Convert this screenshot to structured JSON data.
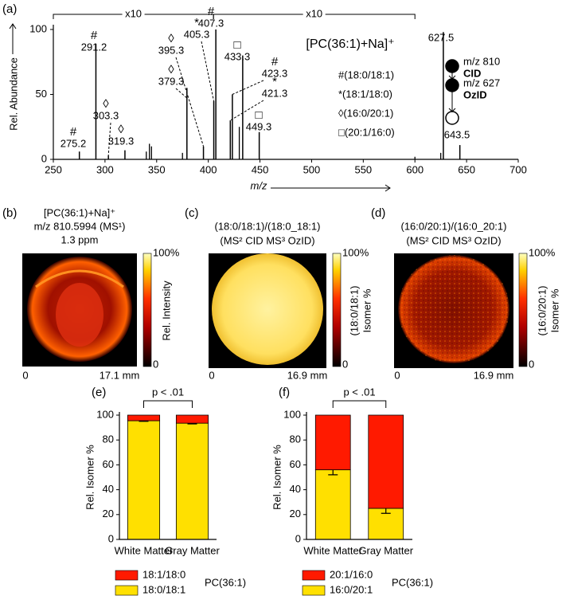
{
  "chart_data": [
    {
      "type": "stem",
      "label": "(a)",
      "title": "[PC(36:1)+Na]⁺",
      "xlabel": "m/z",
      "ylabel": "Rel. Abundance",
      "xlim": [
        250,
        700
      ],
      "xticks": [
        250,
        300,
        350,
        400,
        450,
        500,
        550,
        600,
        650,
        700
      ],
      "ylim": [
        0,
        100
      ],
      "yticks": [
        0,
        50,
        100
      ],
      "color": "#000000",
      "x": [
        275.2,
        291.2,
        303.3,
        319.3,
        379.3,
        395.3,
        405.3,
        407.3,
        421.3,
        423.3,
        433.3,
        449.3,
        627.5,
        643.5
      ],
      "values": [
        6,
        89,
        3,
        7,
        55,
        10,
        45,
        100,
        30,
        50,
        80,
        21,
        98,
        11
      ],
      "symbols": [
        "#",
        "#",
        "◊",
        "◊",
        "◊",
        "◊",
        "*",
        "#",
        "*",
        "#",
        "□",
        "□",
        null,
        null
      ],
      "minor_x": [
        340,
        343,
        345,
        375,
        430,
        600,
        625
      ],
      "minor_values": [
        6,
        12,
        10,
        5,
        25,
        2,
        5
      ],
      "magnifications": [
        {
          "label": "x10",
          "range": [
            250,
            405
          ]
        },
        {
          "label": "x10",
          "range": [
            405,
            600
          ]
        }
      ],
      "legend_items": [
        "#(18:0/18:1)",
        "*(18:1/18:0)",
        "◊(16:0/20:1)",
        "□(20:1/16:0)"
      ],
      "scheme": [
        "m/z 810",
        "CID",
        "m/z 627",
        "OzID"
      ]
    },
    {
      "type": "stacked_bar",
      "label": "(e)",
      "annotation": "p < .01",
      "ylabel": "Rel. Isomer %",
      "categories": [
        "White Matter",
        "Gray Matter"
      ],
      "ylim": [
        0,
        100
      ],
      "yticks": [
        0,
        20,
        40,
        60,
        80,
        100
      ],
      "legend_title": "PC(36:1)",
      "series": [
        {
          "name": "18:0/18:1",
          "color": "#ffe000",
          "values": [
            95.5,
            93.5
          ],
          "errors": [
            0.5,
            0.6
          ]
        },
        {
          "name": "18:1/18:0",
          "color": "#ff1a00",
          "values": [
            4.5,
            6.5
          ]
        }
      ]
    },
    {
      "type": "stacked_bar",
      "label": "(f)",
      "annotation": "p < .01",
      "ylabel": "Rel. Isomer %",
      "categories": [
        "White Matter",
        "Gray Matter"
      ],
      "ylim": [
        0,
        100
      ],
      "yticks": [
        0,
        20,
        40,
        60,
        80,
        100
      ],
      "legend_title": "PC(36:1)",
      "series": [
        {
          "name": "16:0/20:1",
          "color": "#ffe000",
          "values": [
            56,
            25
          ],
          "errors": [
            4,
            4
          ]
        },
        {
          "name": "20:1/16:0",
          "color": "#ff1a00",
          "values": [
            44,
            75
          ]
        }
      ]
    }
  ],
  "images": [
    {
      "label": "(b)",
      "title": [
        "[PC(36:1)+Na]⁺",
        "m/z 810.5994 (MS¹)",
        "1.3 ppm"
      ],
      "colorbar_label": [
        "Rel. Intensity"
      ],
      "colorbar_top": "100%",
      "colorbar_bottom": "0",
      "scale": [
        "0",
        "17.1 mm"
      ]
    },
    {
      "label": "(c)",
      "title": [
        "(18:0/18:1)/(18:0_18:1)",
        "(MS² CID MS³ OzID)"
      ],
      "colorbar_label": [
        "(18:0/18:1)",
        "Isomer %"
      ],
      "colorbar_top": "100%",
      "colorbar_bottom": "0",
      "scale": [
        "0",
        "16.9 mm"
      ]
    },
    {
      "label": "(d)",
      "title": [
        "(16:0/20:1)/(16:0_20:1)",
        "(MS² CID MS³ OzID)"
      ],
      "colorbar_label": [
        "(16:0/20:1)",
        "Isomer %"
      ],
      "colorbar_top": "100%",
      "colorbar_bottom": "0",
      "scale": [
        "0",
        "16.9 mm"
      ]
    }
  ]
}
